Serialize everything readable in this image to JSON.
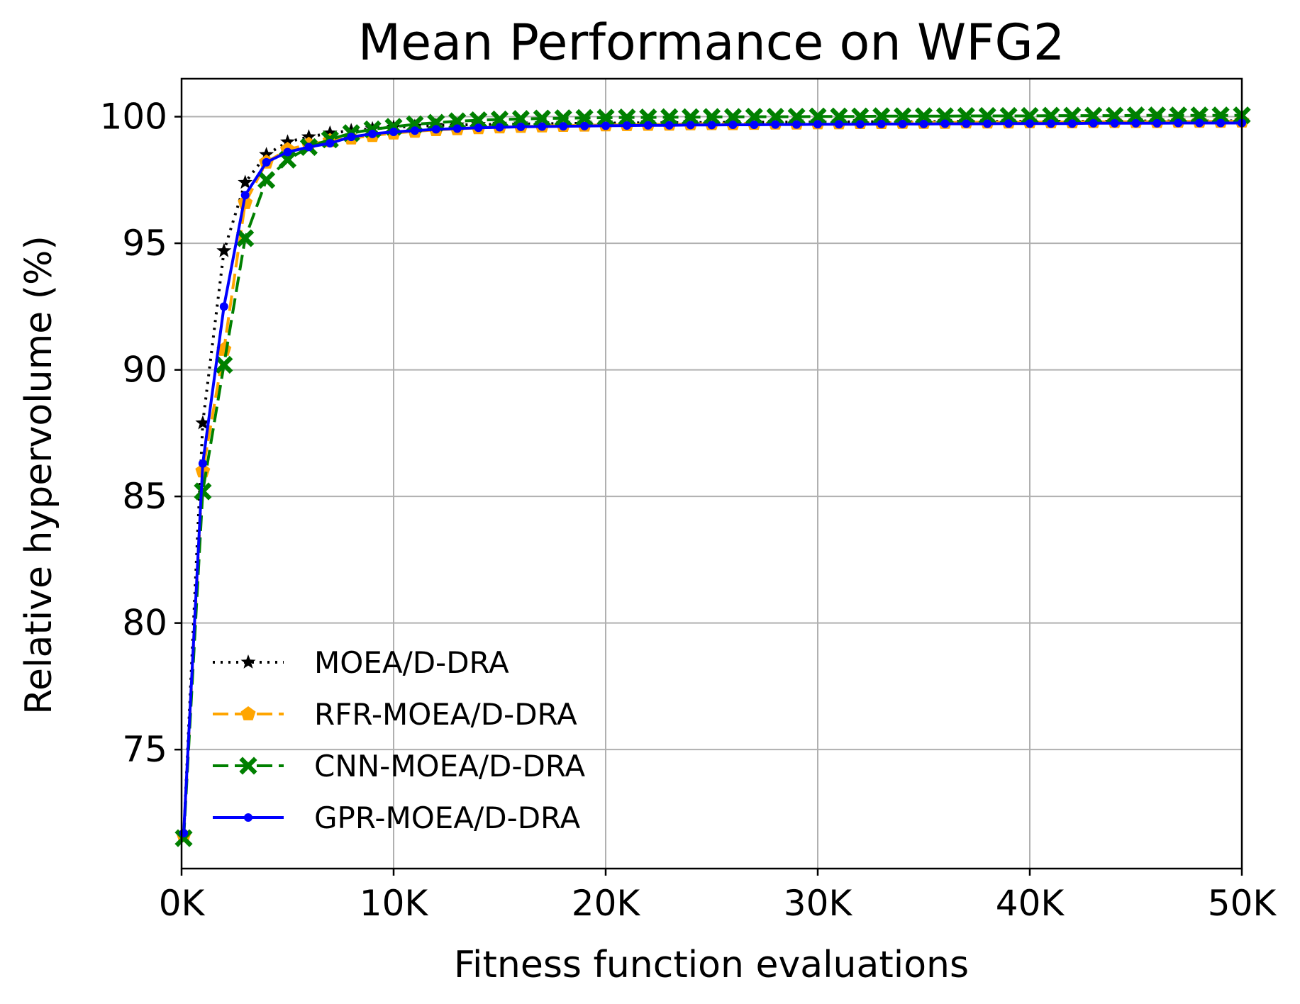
{
  "chart_data": {
    "type": "line",
    "title": "Mean Performance on WFG2",
    "xlabel": "Fitness function evaluations",
    "ylabel": "Relative hypervolume (%)",
    "xlim": [
      0,
      50000
    ],
    "ylim": [
      70.3,
      101.5
    ],
    "xticks": [
      0,
      10000,
      20000,
      30000,
      40000,
      50000
    ],
    "xtick_labels": [
      "0K",
      "10K",
      "20K",
      "30K",
      "40K",
      "50K"
    ],
    "yticks": [
      75,
      80,
      85,
      90,
      95,
      100
    ],
    "ytick_labels": [
      "75",
      "80",
      "85",
      "90",
      "95",
      "100"
    ],
    "grid": true,
    "legend_position": "lower-left",
    "x": [
      100,
      1000,
      2000,
      3000,
      4000,
      5000,
      6000,
      7000,
      8000,
      9000,
      10000,
      11000,
      12000,
      13000,
      14000,
      15000,
      16000,
      17000,
      18000,
      19000,
      20000,
      21000,
      22000,
      23000,
      24000,
      25000,
      26000,
      27000,
      28000,
      29000,
      30000,
      31000,
      32000,
      33000,
      34000,
      35000,
      36000,
      37000,
      38000,
      39000,
      40000,
      41000,
      42000,
      43000,
      44000,
      45000,
      46000,
      47000,
      48000,
      49000,
      50000
    ],
    "series": [
      {
        "name": "MOEA/D-DRA",
        "color": "#000000",
        "line_style": "dotted",
        "marker": "star",
        "values": [
          71.6,
          87.9,
          94.7,
          97.4,
          98.5,
          99.0,
          99.2,
          99.35,
          99.45,
          99.52,
          99.58,
          99.62,
          99.65,
          99.67,
          99.69,
          99.7,
          99.71,
          99.72,
          99.73,
          99.74,
          99.75,
          99.75,
          99.76,
          99.76,
          99.77,
          99.77,
          99.78,
          99.78,
          99.78,
          99.79,
          99.79,
          99.79,
          99.8,
          99.8,
          99.8,
          99.8,
          99.81,
          99.81,
          99.81,
          99.81,
          99.82,
          99.82,
          99.82,
          99.82,
          99.82,
          99.83,
          99.83,
          99.83,
          99.83,
          99.83,
          99.84
        ]
      },
      {
        "name": "RFR-MOEA/D-DRA",
        "color": "#ffa500",
        "line_style": "dashed",
        "marker": "pentagon",
        "values": [
          71.6,
          86.0,
          90.8,
          96.6,
          98.2,
          98.7,
          98.9,
          99.05,
          99.15,
          99.25,
          99.35,
          99.42,
          99.48,
          99.52,
          99.56,
          99.59,
          99.61,
          99.63,
          99.65,
          99.66,
          99.67,
          99.68,
          99.69,
          99.7,
          99.71,
          99.72,
          99.72,
          99.73,
          99.74,
          99.74,
          99.75,
          99.75,
          99.76,
          99.76,
          99.77,
          99.77,
          99.77,
          99.78,
          99.78,
          99.78,
          99.79,
          99.79,
          99.79,
          99.8,
          99.8,
          99.8,
          99.8,
          99.81,
          99.81,
          99.81,
          99.82
        ]
      },
      {
        "name": "CNN-MOEA/D-DRA",
        "color": "#008000",
        "line_style": "dashed",
        "marker": "x",
        "values": [
          71.5,
          85.2,
          90.2,
          95.2,
          97.5,
          98.3,
          98.8,
          99.1,
          99.35,
          99.5,
          99.6,
          99.7,
          99.76,
          99.82,
          99.86,
          99.89,
          99.91,
          99.93,
          99.94,
          99.95,
          99.96,
          99.97,
          99.97,
          99.98,
          99.98,
          99.99,
          99.99,
          100.0,
          100.0,
          100.0,
          100.01,
          100.01,
          100.01,
          100.02,
          100.02,
          100.02,
          100.02,
          100.03,
          100.03,
          100.03,
          100.03,
          100.04,
          100.04,
          100.04,
          100.04,
          100.05,
          100.05,
          100.05,
          100.05,
          100.05,
          100.05
        ]
      },
      {
        "name": "GPR-MOEA/D-DRA",
        "color": "#0000ff",
        "line_style": "solid",
        "marker": "dot",
        "values": [
          71.7,
          86.3,
          92.5,
          96.9,
          98.2,
          98.6,
          98.8,
          98.95,
          99.2,
          99.32,
          99.4,
          99.45,
          99.5,
          99.53,
          99.56,
          99.58,
          99.6,
          99.61,
          99.62,
          99.63,
          99.64,
          99.65,
          99.66,
          99.66,
          99.67,
          99.67,
          99.68,
          99.68,
          99.69,
          99.69,
          99.7,
          99.7,
          99.7,
          99.71,
          99.71,
          99.71,
          99.72,
          99.72,
          99.72,
          99.73,
          99.73,
          99.73,
          99.73,
          99.74,
          99.74,
          99.74,
          99.74,
          99.75,
          99.75,
          99.75,
          99.75
        ]
      }
    ]
  }
}
